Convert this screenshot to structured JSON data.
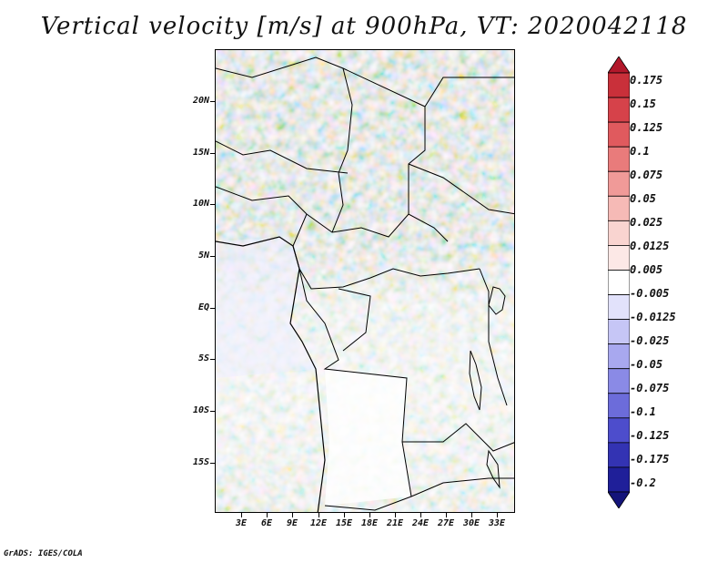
{
  "title": "Vertical velocity [m/s] at 900hPa, VT: 2020042118",
  "lat_labels": [
    "20N",
    "15N",
    "10N",
    "5N",
    "EQ",
    "5S",
    "10S",
    "15S"
  ],
  "lon_labels": [
    "3E",
    "6E",
    "9E",
    "12E",
    "15E",
    "18E",
    "21E",
    "24E",
    "27E",
    "30E",
    "33E"
  ],
  "colorbar": {
    "labels": [
      "0.175",
      "0.15",
      "0.125",
      "0.1",
      "0.075",
      "0.05",
      "0.025",
      "0.0125",
      "0.005",
      "-0.005",
      "-0.0125",
      "-0.025",
      "-0.05",
      "-0.075",
      "-0.1",
      "-0.125",
      "-0.175",
      "-0.2"
    ],
    "colors": [
      "#b2182b",
      "#c9303a",
      "#d6424a",
      "#e05a5e",
      "#e97b7b",
      "#f09a98",
      "#f6bab6",
      "#f9d4d0",
      "#fce8e6",
      "#ffffff",
      "#e2e2fb",
      "#c6c6f6",
      "#a8a8ef",
      "#8a8ae6",
      "#6c6cda",
      "#4d4dcc",
      "#3333b3",
      "#1f1f99",
      "#14147a"
    ]
  },
  "credit": "GrADS: IGES/COLA"
}
